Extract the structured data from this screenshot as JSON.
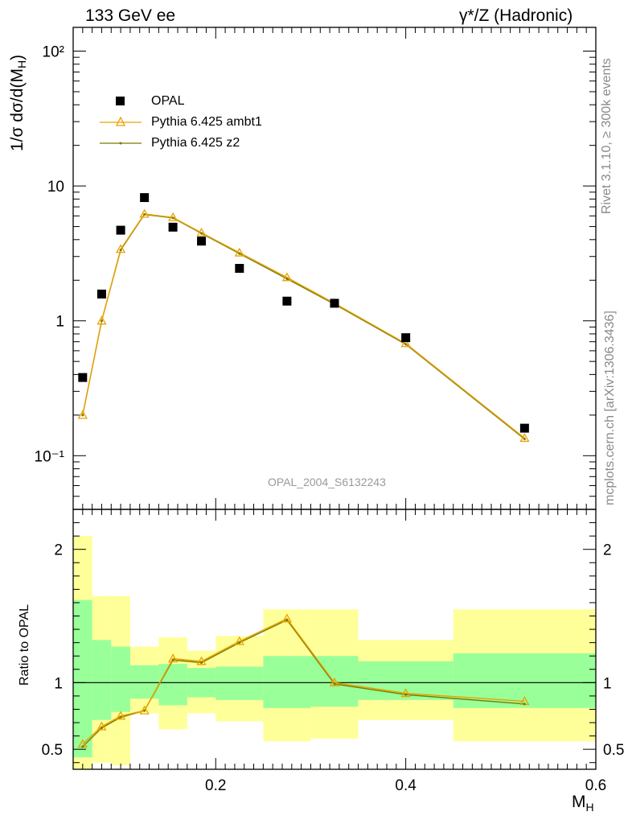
{
  "header": {
    "left": "133 GeV ee",
    "right": "γ*/Z (Hadronic)"
  },
  "side_labels": {
    "rivet": "Rivet 3.1.10, ≥ 300k events",
    "source": "mcplots.cern.ch [arXiv:1306.3436]"
  },
  "watermark": "OPAL_2004_S6132243",
  "colors": {
    "data": "#000000",
    "ambt1": "#e8a200",
    "z2": "#7a7a00",
    "band_inner": "#99ff99",
    "band_outer": "#ffff99",
    "watermark": "#9a9a9a"
  },
  "chart_data": [
    {
      "type": "scatter",
      "panel": "main",
      "ylabel": "1/σ dσ/d(M_H)",
      "ylabel_main": "1/σ dσ/d(M",
      "ylabel_sub": "H",
      "ylabel_close": ")",
      "yscale": "log",
      "xlim": [
        0.05,
        0.6
      ],
      "ylim": [
        0.04,
        150
      ],
      "ytick_labels": [
        "10⁻¹",
        "1",
        "10",
        "10²"
      ],
      "ytick_values": [
        0.1,
        1,
        10,
        100
      ],
      "legend_position": "top-left",
      "series": [
        {
          "name": "OPAL",
          "marker": "square",
          "x": [
            0.06,
            0.08,
            0.1,
            0.125,
            0.155,
            0.185,
            0.225,
            0.275,
            0.325,
            0.4,
            0.525
          ],
          "y": [
            0.38,
            1.58,
            4.7,
            8.2,
            4.95,
            3.9,
            2.45,
            1.4,
            1.35,
            0.75,
            0.16
          ]
        },
        {
          "name": "Pythia 6.425 ambt1",
          "marker": "triangle",
          "x": [
            0.06,
            0.08,
            0.1,
            0.125,
            0.155,
            0.185,
            0.225,
            0.275,
            0.325,
            0.4,
            0.525
          ],
          "y": [
            0.2,
            1.0,
            3.4,
            6.2,
            5.85,
            4.5,
            3.2,
            2.1,
            1.35,
            0.68,
            0.135
          ]
        },
        {
          "name": "Pythia 6.425 z2",
          "marker": "dot",
          "x": [
            0.06,
            0.08,
            0.1,
            0.125,
            0.155,
            0.185,
            0.225,
            0.275,
            0.325,
            0.4,
            0.525
          ],
          "y": [
            0.2,
            1.0,
            3.35,
            6.15,
            5.8,
            4.45,
            3.15,
            2.05,
            1.33,
            0.67,
            0.133
          ]
        }
      ]
    },
    {
      "type": "line",
      "panel": "ratio",
      "ylabel": "Ratio to OPAL",
      "xlabel": "M_H",
      "xlabel_main": "M",
      "xlabel_sub": "H",
      "xlim": [
        0.05,
        0.6
      ],
      "ylim": [
        0.35,
        2.3
      ],
      "ytick_labels": [
        "0.5",
        "1",
        "2"
      ],
      "ytick_values": [
        0.5,
        1,
        2
      ],
      "xtick_labels": [
        "0.2",
        "0.4",
        "0.6"
      ],
      "xtick_values": [
        0.2,
        0.4,
        0.6
      ],
      "bins": [
        {
          "lo": 0.05,
          "hi": 0.07,
          "inner": [
            0.44,
            1.62
          ],
          "outer": [
            0.35,
            2.1
          ]
        },
        {
          "lo": 0.07,
          "hi": 0.09,
          "inner": [
            0.72,
            1.32
          ],
          "outer": [
            0.4,
            1.65
          ]
        },
        {
          "lo": 0.09,
          "hi": 0.11,
          "inner": [
            0.78,
            1.27
          ],
          "outer": [
            0.38,
            1.65
          ]
        },
        {
          "lo": 0.11,
          "hi": 0.14,
          "inner": [
            0.88,
            1.13
          ],
          "outer": [
            0.77,
            1.27
          ]
        },
        {
          "lo": 0.14,
          "hi": 0.17,
          "inner": [
            0.83,
            1.14
          ],
          "outer": [
            0.65,
            1.34
          ]
        },
        {
          "lo": 0.17,
          "hi": 0.2,
          "inner": [
            0.89,
            1.11
          ],
          "outer": [
            0.77,
            1.24
          ]
        },
        {
          "lo": 0.2,
          "hi": 0.25,
          "inner": [
            0.87,
            1.12
          ],
          "outer": [
            0.71,
            1.35
          ]
        },
        {
          "lo": 0.25,
          "hi": 0.3,
          "inner": [
            0.81,
            1.2
          ],
          "outer": [
            0.56,
            1.55
          ]
        },
        {
          "lo": 0.3,
          "hi": 0.35,
          "inner": [
            0.82,
            1.2
          ],
          "outer": [
            0.58,
            1.55
          ]
        },
        {
          "lo": 0.35,
          "hi": 0.45,
          "inner": [
            0.87,
            1.16
          ],
          "outer": [
            0.72,
            1.32
          ]
        },
        {
          "lo": 0.45,
          "hi": 0.6,
          "inner": [
            0.81,
            1.22
          ],
          "outer": [
            0.56,
            1.55
          ]
        }
      ],
      "series": [
        {
          "name": "Pythia 6.425 ambt1",
          "x": [
            0.06,
            0.08,
            0.1,
            0.125,
            0.155,
            0.185,
            0.225,
            0.275,
            0.325,
            0.4,
            0.525
          ],
          "y": [
            0.54,
            0.67,
            0.75,
            0.79,
            1.18,
            1.16,
            1.31,
            1.48,
            1.0,
            0.92,
            0.86
          ]
        },
        {
          "name": "Pythia 6.425 z2",
          "x": [
            0.06,
            0.08,
            0.1,
            0.125,
            0.155,
            0.185,
            0.225,
            0.275,
            0.325,
            0.4,
            0.525
          ],
          "y": [
            0.52,
            0.66,
            0.74,
            0.79,
            1.17,
            1.15,
            1.3,
            1.47,
            0.99,
            0.91,
            0.84
          ]
        }
      ]
    }
  ]
}
